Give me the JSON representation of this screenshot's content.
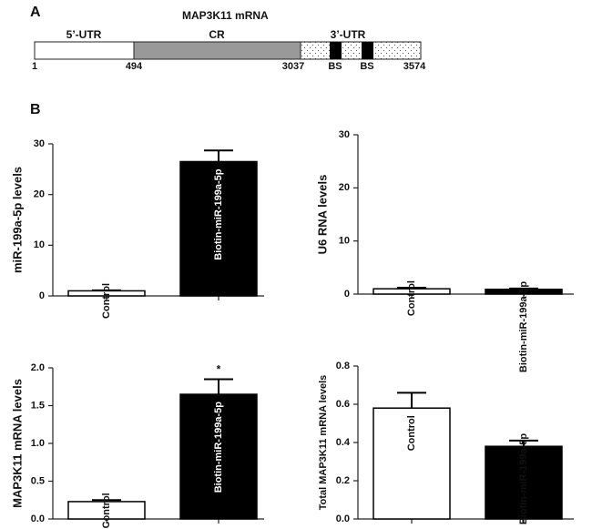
{
  "panel_a": {
    "label": "A",
    "title": "MAP3K11 mRNA",
    "regions": [
      "5’-UTR",
      "CR",
      "3’-UTR"
    ],
    "positions": [
      1,
      494,
      3037,
      3574
    ],
    "sites": [
      "BS",
      "BS"
    ]
  },
  "panel_b_label": "B",
  "chart_data": [
    {
      "type": "bar",
      "y_label": "miR-199a-5p levels",
      "categories": [
        "Control",
        "Biotin-miR-199a-5p"
      ],
      "values": [
        1,
        26.5
      ],
      "errors": [
        0.1,
        2.2
      ],
      "colors": [
        "#ffffff",
        "#000000"
      ],
      "ylim": [
        0,
        30
      ],
      "yticks": [
        0,
        10,
        20,
        30
      ]
    },
    {
      "type": "bar",
      "y_label": "U6 RNA levels",
      "categories": [
        "Control",
        "Biotin-miR-199a-5p"
      ],
      "values": [
        1.0,
        0.9
      ],
      "errors": [
        0.2,
        0.15
      ],
      "colors": [
        "#ffffff",
        "#000000"
      ],
      "ylim": [
        0,
        30
      ],
      "yticks": [
        0,
        10,
        20,
        30
      ]
    },
    {
      "type": "bar",
      "y_label": "MAP3K11 mRNA levels",
      "categories": [
        "Control",
        "Biotin-miR-199a-5p"
      ],
      "values": [
        0.23,
        1.65
      ],
      "errors": [
        0.02,
        0.2
      ],
      "colors": [
        "#ffffff",
        "#000000"
      ],
      "ylim": [
        0,
        2
      ],
      "yticks": [
        {
          "value": 0,
          "label": "0.0"
        },
        0.5,
        {
          "value": 1,
          "label": "1.0"
        },
        1.5,
        {
          "value": 2,
          "label": "2.0"
        }
      ],
      "annotation": "*"
    },
    {
      "type": "bar",
      "y_label": "Total MAP3K11 mRNA levels",
      "categories": [
        "Control",
        "Biotin-miR-199a-5p"
      ],
      "values": [
        0.58,
        0.38
      ],
      "errors": [
        0.08,
        0.03
      ],
      "colors": [
        "#ffffff",
        "#000000"
      ],
      "ylim": [
        0,
        0.8
      ],
      "yticks": [
        {
          "value": 0,
          "label": "0.0"
        },
        0.2,
        0.4,
        0.6,
        0.8
      ]
    }
  ]
}
